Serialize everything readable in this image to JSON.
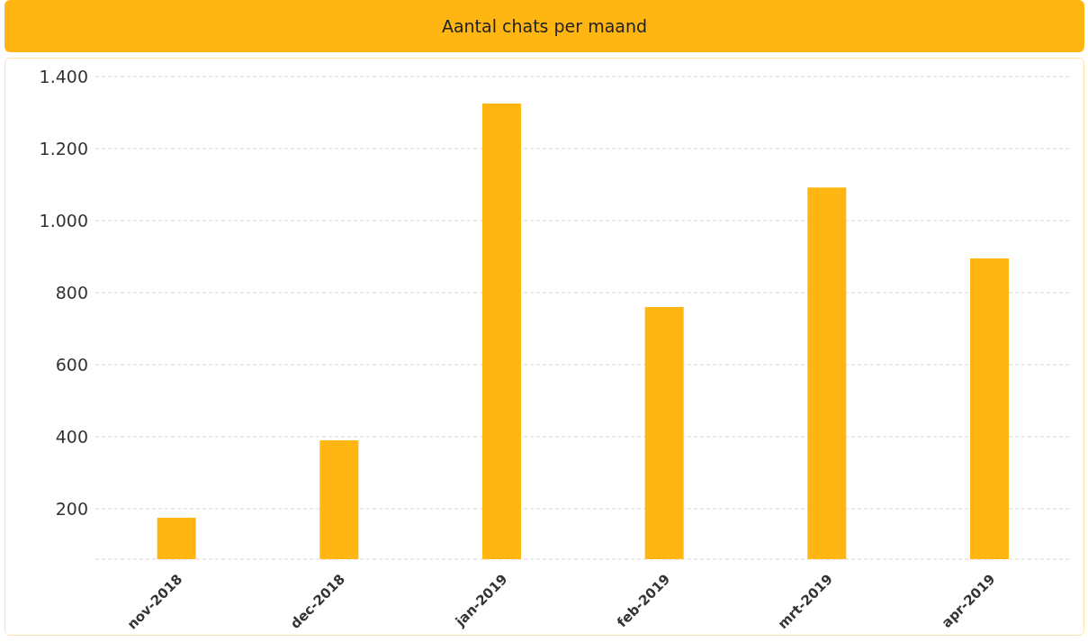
{
  "chart_data": {
    "type": "bar",
    "title": "Aantal chats per maand",
    "categories": [
      "nov-2018",
      "dec-2018",
      "jan-2019",
      "feb-2019",
      "mrt-2019",
      "apr-2019"
    ],
    "values": [
      175,
      390,
      1325,
      760,
      1092,
      895
    ],
    "color": "#ffb612",
    "ylim": [
      60,
      1400
    ],
    "yticks": [
      200,
      400,
      600,
      800,
      {
        "value": 1000,
        "label": "1.000"
      },
      {
        "value": 1200,
        "label": "1.200"
      },
      {
        "value": 1400,
        "label": "1.400"
      }
    ],
    "grid": "y"
  }
}
